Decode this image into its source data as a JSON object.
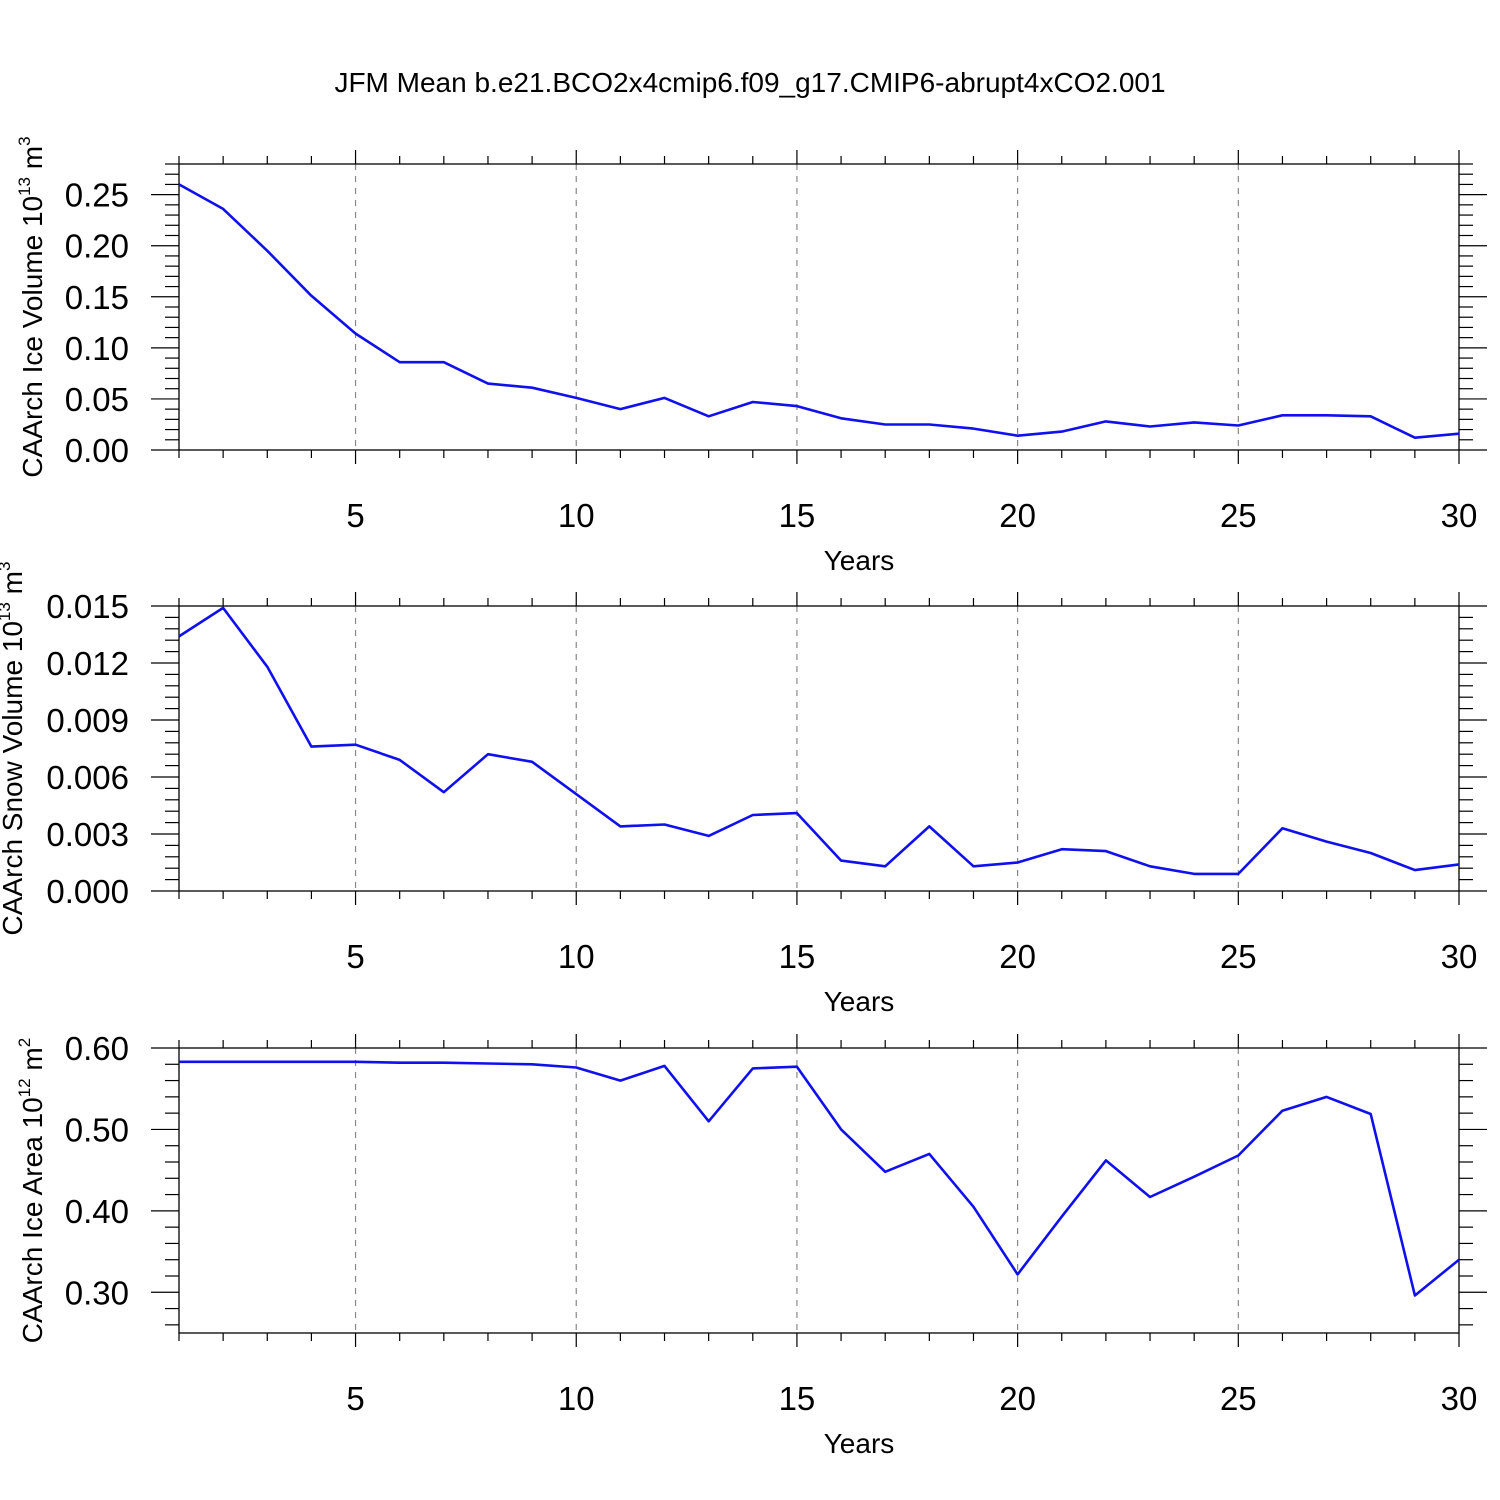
{
  "title": "JFM Mean b.e21.BCO2x4cmip6.f09_g17.CMIP6-abrupt4xCO2.001",
  "colors": {
    "line": "#1010ee",
    "axis": "#000000",
    "grid": "#888888"
  },
  "chart_data": [
    {
      "type": "line",
      "xlabel": "Years",
      "ylabel": {
        "text": "CAArch Ice Volume 10",
        "exp": "13",
        "unit": "m",
        "unit_exp": "3"
      },
      "xlim": [
        1,
        30
      ],
      "ylim": [
        0,
        0.28
      ],
      "xticks": [
        5,
        10,
        15,
        20,
        25,
        30
      ],
      "xtick_labels": [
        "5",
        "10",
        "15",
        "20",
        "25",
        "30"
      ],
      "yticks": [
        0,
        0.05,
        0.1,
        0.15,
        0.2,
        0.25
      ],
      "ytick_labels": [
        "0.00",
        "0.05",
        "0.10",
        "0.15",
        "0.20",
        "0.25"
      ],
      "grid": "vertical dashed at major x ticks",
      "x": [
        1,
        2,
        3,
        4,
        5,
        6,
        7,
        8,
        9,
        10,
        11,
        12,
        13,
        14,
        15,
        16,
        17,
        18,
        19,
        20,
        21,
        22,
        23,
        24,
        25,
        26,
        27,
        28,
        29,
        30
      ],
      "y": [
        0.26,
        0.236,
        0.195,
        0.151,
        0.114,
        0.086,
        0.086,
        0.065,
        0.061,
        0.051,
        0.04,
        0.051,
        0.033,
        0.047,
        0.043,
        0.031,
        0.025,
        0.025,
        0.021,
        0.014,
        0.018,
        0.028,
        0.023,
        0.027,
        0.024,
        0.034,
        0.034,
        0.033,
        0.012,
        0.016
      ]
    },
    {
      "type": "line",
      "xlabel": "Years",
      "ylabel": {
        "text": "CAArch Snow Volume 10",
        "exp": "13",
        "unit": "m",
        "unit_exp": "3"
      },
      "xlim": [
        1,
        30
      ],
      "ylim": [
        0,
        0.015
      ],
      "xticks": [
        5,
        10,
        15,
        20,
        25,
        30
      ],
      "xtick_labels": [
        "5",
        "10",
        "15",
        "20",
        "25",
        "30"
      ],
      "yticks": [
        0,
        0.003,
        0.006,
        0.009,
        0.012,
        0.015
      ],
      "ytick_labels": [
        "0.000",
        "0.003",
        "0.006",
        "0.009",
        "0.012",
        "0.015"
      ],
      "grid": "vertical dashed at major x ticks",
      "x": [
        1,
        2,
        3,
        4,
        5,
        6,
        7,
        8,
        9,
        10,
        11,
        12,
        13,
        14,
        15,
        16,
        17,
        18,
        19,
        20,
        21,
        22,
        23,
        24,
        25,
        26,
        27,
        28,
        29,
        30
      ],
      "y": [
        0.0134,
        0.0149,
        0.0118,
        0.0076,
        0.0077,
        0.0069,
        0.0052,
        0.0072,
        0.0068,
        0.0051,
        0.0034,
        0.0035,
        0.0029,
        0.004,
        0.0041,
        0.0016,
        0.0013,
        0.0034,
        0.0013,
        0.0015,
        0.0022,
        0.0021,
        0.0013,
        0.0009,
        0.0009,
        0.0033,
        0.0026,
        0.002,
        0.0011,
        0.0014
      ]
    },
    {
      "type": "line",
      "xlabel": "Years",
      "ylabel": {
        "text": "CAArch Ice Area 10",
        "exp": "12",
        "unit": "m",
        "unit_exp": "2"
      },
      "xlim": [
        1,
        30
      ],
      "ylim": [
        0.25,
        0.6
      ],
      "xticks": [
        5,
        10,
        15,
        20,
        25,
        30
      ],
      "xtick_labels": [
        "5",
        "10",
        "15",
        "20",
        "25",
        "30"
      ],
      "yticks": [
        0.3,
        0.4,
        0.5,
        0.6
      ],
      "ytick_labels": [
        "0.30",
        "0.40",
        "0.50",
        "0.60"
      ],
      "grid": "vertical dashed at major x ticks",
      "x": [
        1,
        2,
        3,
        4,
        5,
        6,
        7,
        8,
        9,
        10,
        11,
        12,
        13,
        14,
        15,
        16,
        17,
        18,
        19,
        20,
        21,
        22,
        23,
        24,
        25,
        26,
        27,
        28,
        29,
        30
      ],
      "y": [
        0.583,
        0.583,
        0.583,
        0.583,
        0.583,
        0.582,
        0.582,
        0.581,
        0.58,
        0.576,
        0.56,
        0.578,
        0.51,
        0.575,
        0.577,
        0.5,
        0.448,
        0.47,
        0.405,
        0.322,
        0.393,
        0.462,
        0.417,
        0.442,
        0.468,
        0.523,
        0.54,
        0.519,
        0.296,
        0.34
      ]
    }
  ]
}
